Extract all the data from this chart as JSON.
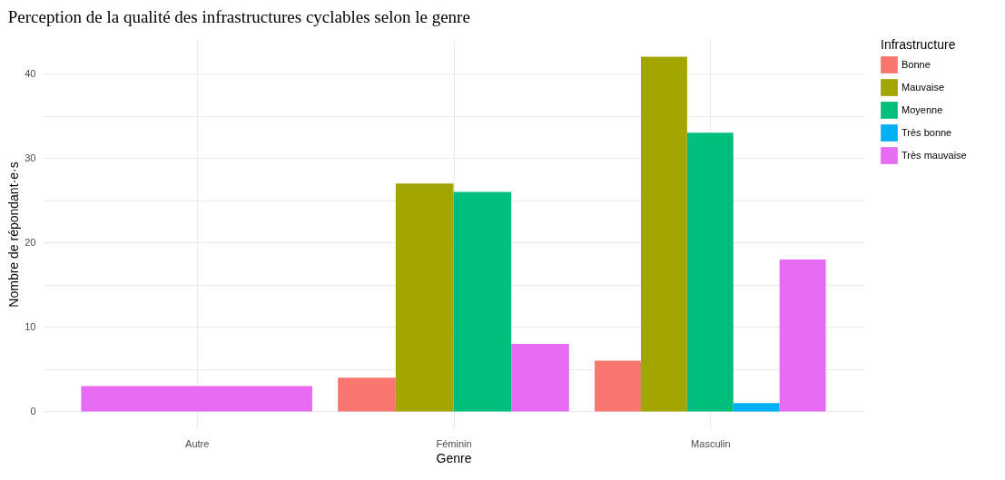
{
  "chart_data": {
    "type": "bar",
    "title": "Perception de la qualité des infrastructures cyclables selon le genre",
    "xlabel": "Genre",
    "ylabel": "Nombre de répondant·e·s",
    "legend_title": "Infrastructure",
    "categories": [
      "Autre",
      "Féminin",
      "Masculin"
    ],
    "series": [
      {
        "name": "Bonne",
        "color": "#f8766d",
        "values": [
          null,
          4,
          6
        ]
      },
      {
        "name": "Mauvaise",
        "color": "#a3a500",
        "values": [
          null,
          27,
          42
        ]
      },
      {
        "name": "Moyenne",
        "color": "#00bf7d",
        "values": [
          null,
          26,
          33
        ]
      },
      {
        "name": "Très bonne",
        "color": "#00b0f6",
        "values": [
          null,
          null,
          1
        ]
      },
      {
        "name": "Très mauvaise",
        "color": "#e76bf3",
        "values": [
          3,
          8,
          18
        ]
      }
    ],
    "ylim": [
      -2.1,
      44.1
    ],
    "yticks": [
      0,
      {
        "value": 5,
        "label": null
      },
      10,
      {
        "value": 15,
        "label": null
      },
      20,
      {
        "value": 25,
        "label": null
      },
      30,
      {
        "value": 35,
        "label": null
      },
      40
    ],
    "grid": true,
    "legend": "right"
  }
}
